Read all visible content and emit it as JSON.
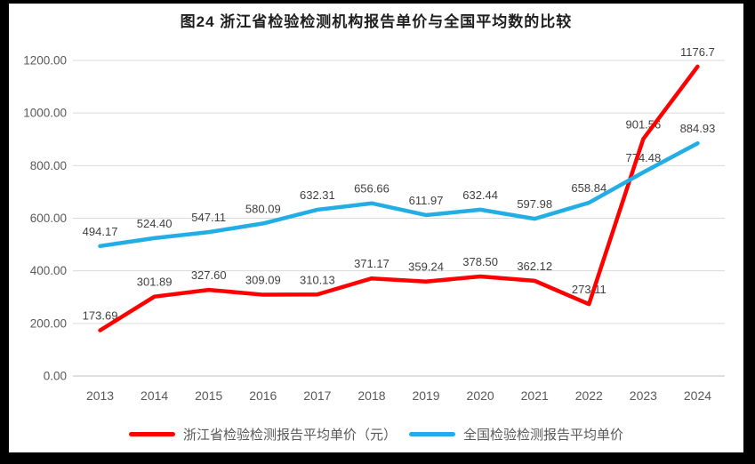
{
  "chart_data": {
    "type": "line",
    "title": "图24  浙江省检验检测机构报告单价与全国平均数的比较",
    "categories": [
      "2013",
      "2014",
      "2015",
      "2016",
      "2017",
      "2018",
      "2019",
      "2020",
      "2021",
      "2022",
      "2023",
      "2024"
    ],
    "yticks": [
      "0.00",
      "200.00",
      "400.00",
      "600.00",
      "800.00",
      "1000.00",
      "1200.00"
    ],
    "ylim": [
      0,
      1200
    ],
    "grid": true,
    "legend_position": "bottom",
    "series": [
      {
        "name": "浙江省检验检测报告平均单价（元）",
        "color": "#fe0000",
        "values": [
          173.69,
          301.89,
          327.6,
          309.09,
          310.13,
          371.17,
          359.24,
          378.5,
          362.12,
          273.11,
          901.56,
          1176.7
        ],
        "labels": [
          "173.69",
          "301.89",
          "327.60",
          "309.09",
          "310.13",
          "371.17",
          "359.24",
          "378.50",
          "362.12",
          "273.11",
          "901.56",
          "1176.7"
        ]
      },
      {
        "name": "全国检验检测报告平均单价",
        "color": "#22ade4",
        "values": [
          494.17,
          524.4,
          547.11,
          580.09,
          632.31,
          656.66,
          611.97,
          632.44,
          597.98,
          658.84,
          774.48,
          884.93
        ],
        "labels": [
          "494.17",
          "524.40",
          "547.11",
          "580.09",
          "632.31",
          "656.66",
          "611.97",
          "632.44",
          "597.98",
          "658.84",
          "774.48",
          "884.93"
        ]
      }
    ]
  },
  "colors": {
    "frame": "#000000",
    "background": "#ffffff",
    "grid": "#d9d9d9",
    "axis": "#bfbfbf",
    "tick_label": "#595959",
    "data_label": "#404040",
    "title": "#1f1f1f"
  }
}
